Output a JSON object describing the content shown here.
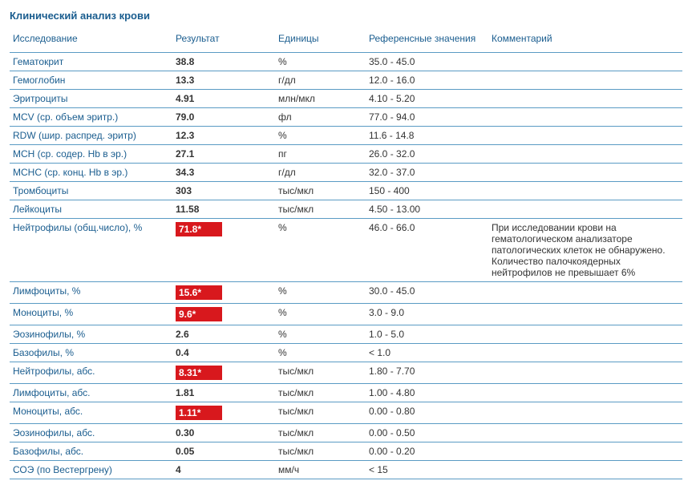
{
  "title": "Клинический анализ крови",
  "colors": {
    "heading": "#1a5d8f",
    "border": "#5a9bc4",
    "text": "#333333",
    "flag_bg": "#d8181d",
    "flag_text": "#ffffff"
  },
  "columns": {
    "test": "Исследование",
    "result": "Результат",
    "units": "Единицы",
    "ref": "Референсные значения",
    "comment": "Комментарий"
  },
  "rows": [
    {
      "test": "Гематокрит",
      "result": "38.8",
      "units": "%",
      "ref": "35.0 - 45.0",
      "comment": "",
      "flag": false
    },
    {
      "test": "Гемоглобин",
      "result": "13.3",
      "units": "г/дл",
      "ref": "12.0 - 16.0",
      "comment": "",
      "flag": false
    },
    {
      "test": "Эритроциты",
      "result": "4.91",
      "units": "млн/мкл",
      "ref": "4.10 - 5.20",
      "comment": "",
      "flag": false
    },
    {
      "test": "MCV (ср. объем эритр.)",
      "result": "79.0",
      "units": "фл",
      "ref": "77.0 - 94.0",
      "comment": "",
      "flag": false
    },
    {
      "test": "RDW (шир. распред. эритр)",
      "result": "12.3",
      "units": "%",
      "ref": "11.6 - 14.8",
      "comment": "",
      "flag": false
    },
    {
      "test": "MCH (ср. содер. Hb в эр.)",
      "result": "27.1",
      "units": "пг",
      "ref": "26.0 - 32.0",
      "comment": "",
      "flag": false
    },
    {
      "test": "MCHC (ср. конц. Hb в эр.)",
      "result": "34.3",
      "units": "г/дл",
      "ref": "32.0 - 37.0",
      "comment": "",
      "flag": false
    },
    {
      "test": "Тромбоциты",
      "result": "303",
      "units": "тыс/мкл",
      "ref": "150 - 400",
      "comment": "",
      "flag": false
    },
    {
      "test": "Лейкоциты",
      "result": "11.58",
      "units": "тыс/мкл",
      "ref": "4.50 - 13.00",
      "comment": "",
      "flag": false
    },
    {
      "test": "Нейтрофилы (общ.число), %",
      "result": "71.8*",
      "units": "%",
      "ref": "46.0 - 66.0",
      "comment": "При исследовании крови на гематологическом анализаторе патологических клеток не обнаружено. Количество палочкоядерных нейтрофилов не превышает 6%",
      "flag": true
    },
    {
      "test": "Лимфоциты, %",
      "result": "15.6*",
      "units": "%",
      "ref": "30.0 - 45.0",
      "comment": "",
      "flag": true
    },
    {
      "test": "Моноциты, %",
      "result": "9.6*",
      "units": "%",
      "ref": "3.0 - 9.0",
      "comment": "",
      "flag": true
    },
    {
      "test": "Эозинофилы, %",
      "result": "2.6",
      "units": "%",
      "ref": "1.0 - 5.0",
      "comment": "",
      "flag": false
    },
    {
      "test": "Базофилы, %",
      "result": "0.4",
      "units": "%",
      "ref": "< 1.0",
      "comment": "",
      "flag": false
    },
    {
      "test": "Нейтрофилы, абс.",
      "result": "8.31*",
      "units": "тыс/мкл",
      "ref": "1.80 - 7.70",
      "comment": "",
      "flag": true
    },
    {
      "test": "Лимфоциты, абс.",
      "result": "1.81",
      "units": "тыс/мкл",
      "ref": "1.00 - 4.80",
      "comment": "",
      "flag": false
    },
    {
      "test": "Моноциты, абс.",
      "result": "1.11*",
      "units": "тыс/мкл",
      "ref": "0.00 - 0.80",
      "comment": "",
      "flag": true
    },
    {
      "test": "Эозинофилы, абс.",
      "result": "0.30",
      "units": "тыс/мкл",
      "ref": "0.00 - 0.50",
      "comment": "",
      "flag": false
    },
    {
      "test": "Базофилы, абс.",
      "result": "0.05",
      "units": "тыс/мкл",
      "ref": "0.00 - 0.20",
      "comment": "",
      "flag": false
    },
    {
      "test": "СОЭ (по Вестергрену)",
      "result": "4",
      "units": "мм/ч",
      "ref": "< 15",
      "comment": "",
      "flag": false
    }
  ]
}
